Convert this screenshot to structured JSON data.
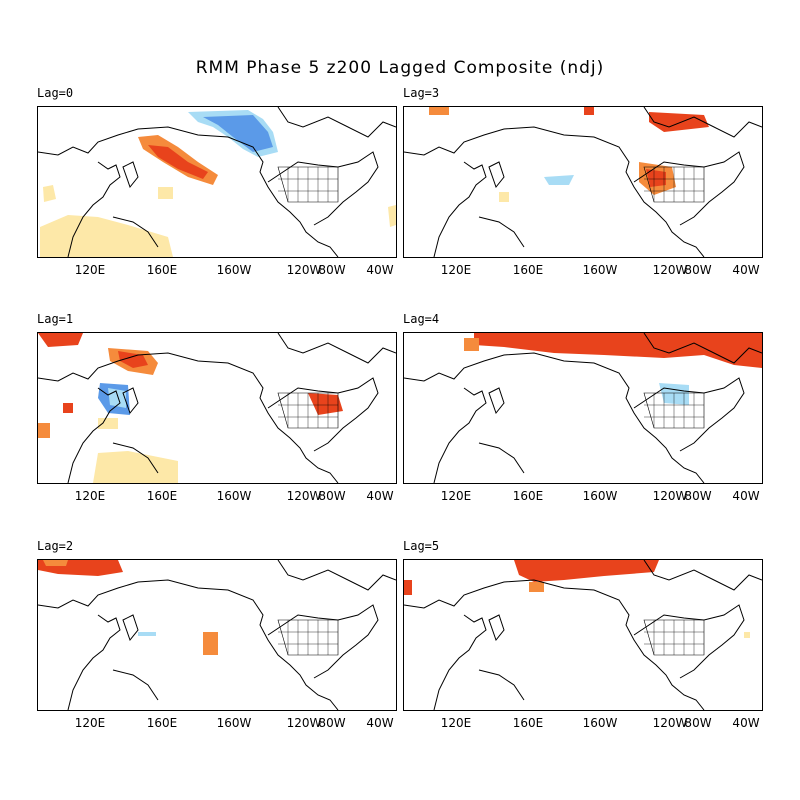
{
  "title": "RMM Phase 5 z200 Lagged Composite (ndj)",
  "lon_ticks": [
    "120E",
    "160E",
    "160W",
    "120W",
    "80W",
    "40W"
  ],
  "panels": [
    {
      "label": "Lag=0"
    },
    {
      "label": "Lag=3"
    },
    {
      "label": "Lag=1"
    },
    {
      "label": "Lag=4"
    },
    {
      "label": "Lag=2"
    },
    {
      "label": "Lag=5"
    }
  ],
  "colors": {
    "positive_strong": "#e8431c",
    "positive_medium": "#f58b3c",
    "positive_weak": "#fde8a8",
    "negative_strong": "#5b9ae8",
    "negative_weak": "#a8dcf5",
    "coast": "#000000"
  }
}
